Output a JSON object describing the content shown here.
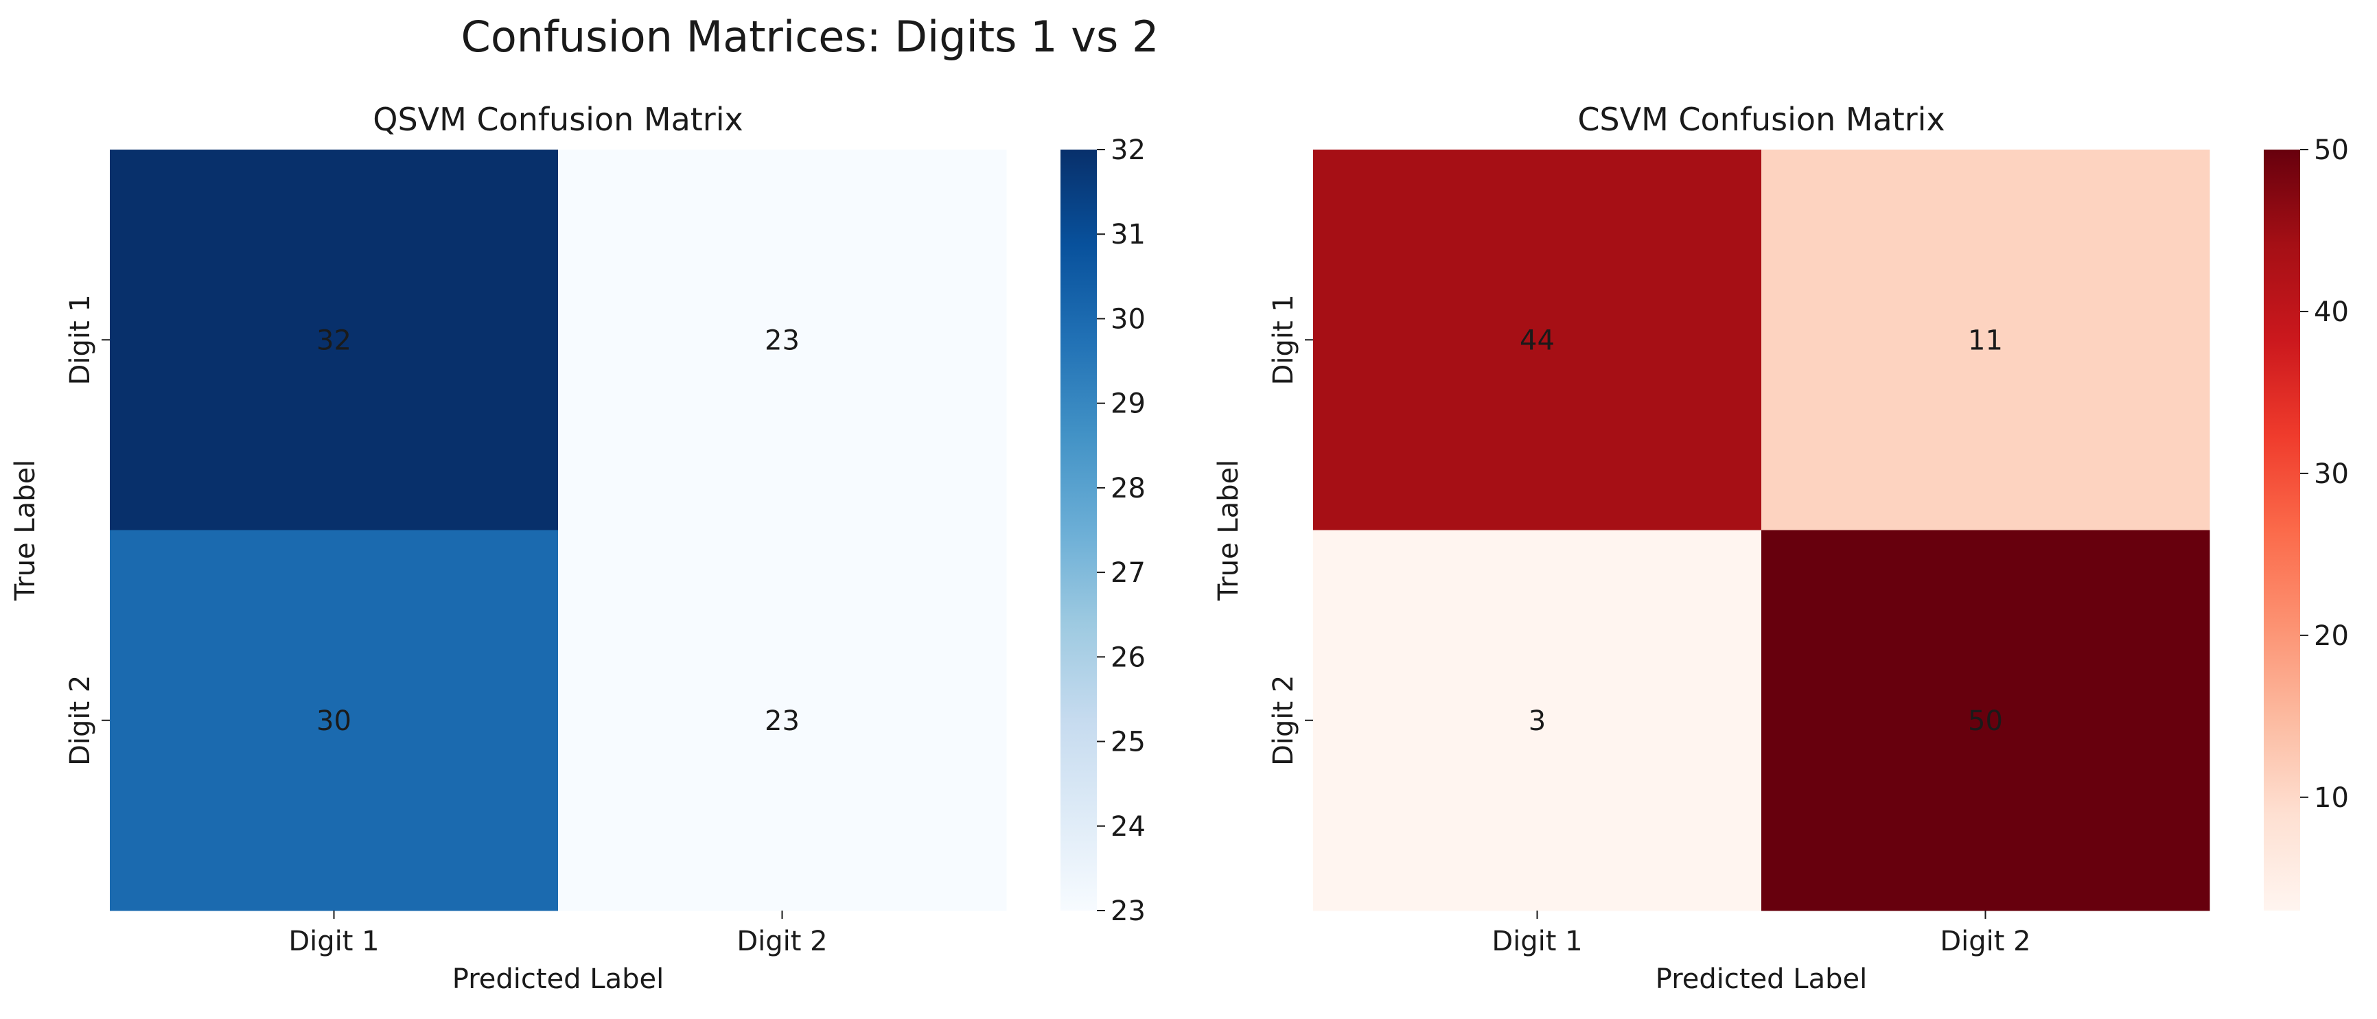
{
  "suptitle": "Confusion Matrices: Digits 1 vs 2",
  "chart_data": [
    {
      "type": "heatmap",
      "title": "QSVM Confusion Matrix",
      "xlabel": "Predicted Label",
      "ylabel": "True Label",
      "x_categories": [
        "Digit 1",
        "Digit 2"
      ],
      "y_categories": [
        "Digit 1",
        "Digit 2"
      ],
      "values": [
        [
          32,
          23
        ],
        [
          30,
          23
        ]
      ],
      "colormap": "Blues",
      "colorbar": {
        "min": 23,
        "max": 32,
        "ticks": [
          23,
          24,
          25,
          26,
          27,
          28,
          29,
          30,
          31,
          32
        ]
      }
    },
    {
      "type": "heatmap",
      "title": "CSVM Confusion Matrix",
      "xlabel": "Predicted Label",
      "ylabel": "True Label",
      "x_categories": [
        "Digit 1",
        "Digit 2"
      ],
      "y_categories": [
        "Digit 1",
        "Digit 2"
      ],
      "values": [
        [
          44,
          11
        ],
        [
          3,
          50
        ]
      ],
      "colormap": "Reds",
      "colorbar": {
        "min": 3,
        "max": 50,
        "ticks": [
          10,
          20,
          30,
          40,
          50
        ]
      }
    }
  ]
}
